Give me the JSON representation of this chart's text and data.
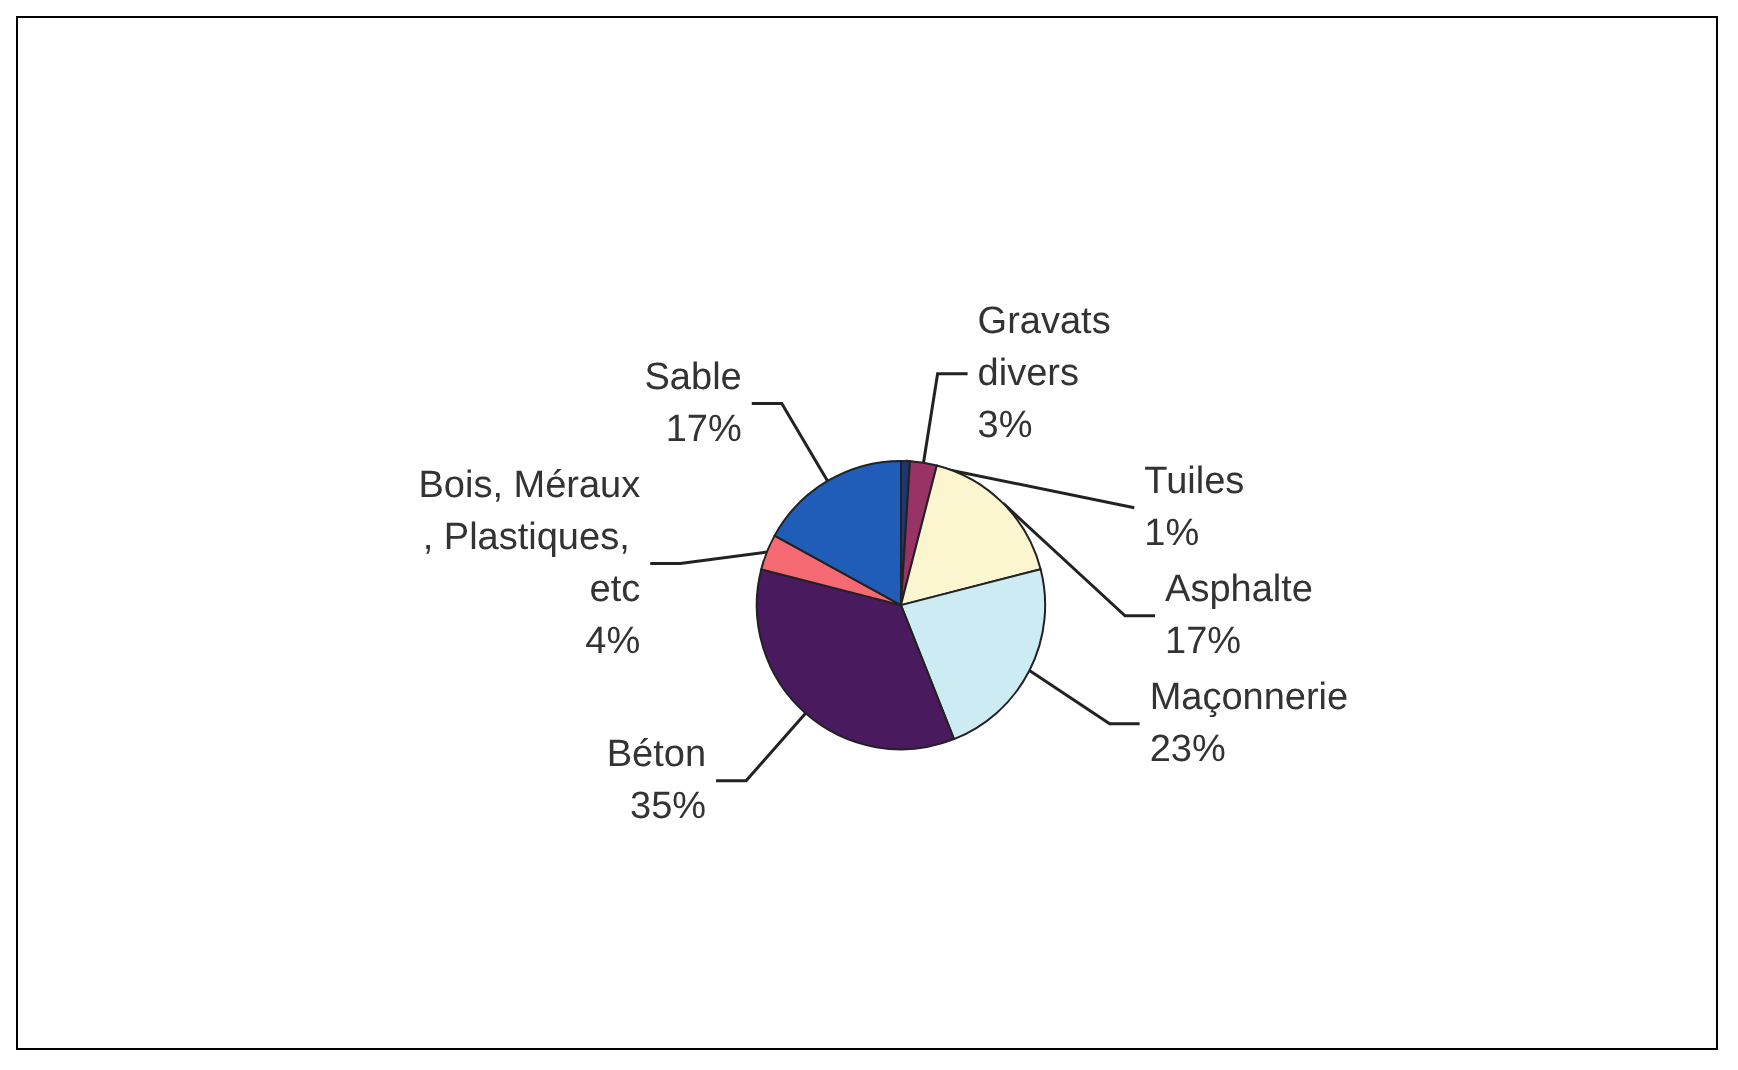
{
  "chart_data": {
    "type": "pie",
    "categories": [
      "Tuiles",
      "Gravats divers",
      "Asphalte",
      "Maçonnerie",
      "Béton",
      "Bois, Méraux, Plastiques, etc",
      "Sable"
    ],
    "values": [
      1,
      3,
      17,
      23,
      35,
      4,
      17
    ],
    "value_labels": [
      "1%",
      "3%",
      "17%",
      "23%",
      "35%",
      "4%",
      "17%"
    ],
    "colors": [
      "#1f3770",
      "#993366",
      "#fbf6cf",
      "#cdebf3",
      "#4a1a5e",
      "#f56a72",
      "#1f5db8"
    ],
    "legend": false
  }
}
